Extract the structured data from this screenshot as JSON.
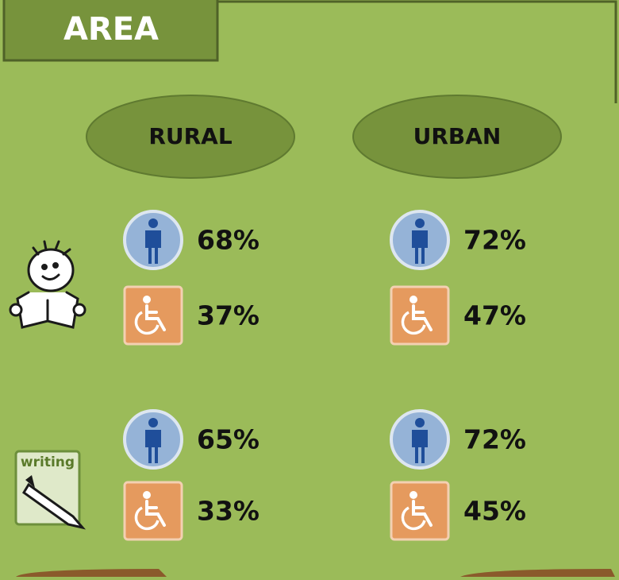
{
  "header": {
    "title": "AREA"
  },
  "columns": [
    "RURAL",
    "URBAN"
  ],
  "rows": [
    {
      "cells": [
        [
          "68%",
          "37%"
        ],
        [
          "72%",
          "47%"
        ]
      ]
    },
    {
      "icon_text": "writing",
      "cells": [
        [
          "65%",
          "33%"
        ],
        [
          "72%",
          "45%"
        ]
      ]
    }
  ]
}
